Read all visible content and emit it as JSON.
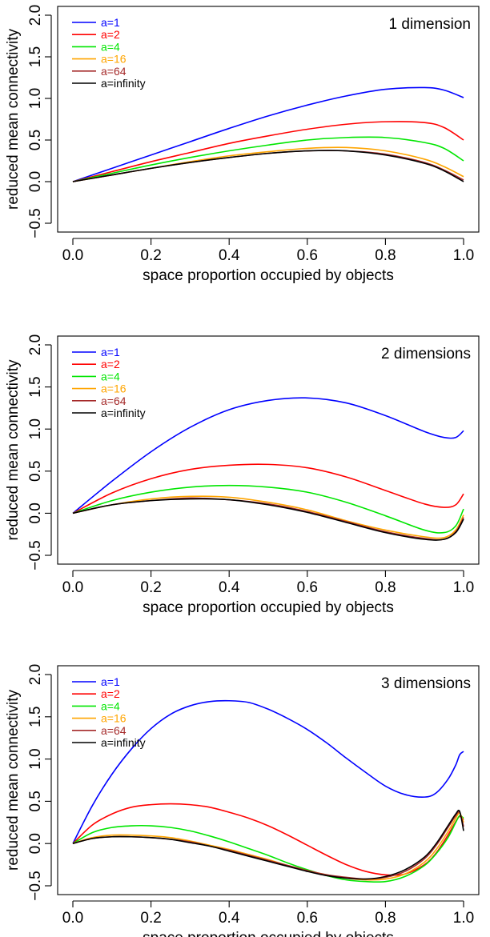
{
  "chart_data": [
    {
      "type": "line",
      "title": "1 dimension",
      "xlabel": "space proportion occupied by objects",
      "ylabel": "reduced mean connectivity",
      "xlim": [
        0,
        1
      ],
      "ylim": [
        -0.5,
        2.0
      ],
      "xticks": [
        "0.0",
        "0.2",
        "0.4",
        "0.6",
        "0.8",
        "1.0"
      ],
      "yticks": [
        "-0.5",
        "0.0",
        "0.5",
        "1.0",
        "1.5",
        "2.0"
      ],
      "legend_position": "top-left",
      "x": [
        0,
        0.1,
        0.2,
        0.3,
        0.4,
        0.5,
        0.6,
        0.7,
        0.8,
        0.9,
        0.95,
        1.0
      ],
      "series": [
        {
          "name": "a=1",
          "color": "#0000ff",
          "values": [
            0,
            0.16,
            0.32,
            0.48,
            0.64,
            0.79,
            0.92,
            1.03,
            1.11,
            1.13,
            1.1,
            1.01
          ]
        },
        {
          "name": "a=2",
          "color": "#ff0000",
          "values": [
            0,
            0.12,
            0.24,
            0.35,
            0.46,
            0.55,
            0.63,
            0.69,
            0.72,
            0.71,
            0.65,
            0.5
          ]
        },
        {
          "name": "a=4",
          "color": "#00e600",
          "values": [
            0,
            0.1,
            0.2,
            0.29,
            0.37,
            0.44,
            0.5,
            0.53,
            0.53,
            0.47,
            0.4,
            0.25
          ]
        },
        {
          "name": "a=16",
          "color": "#ffa500",
          "values": [
            0,
            0.08,
            0.16,
            0.24,
            0.31,
            0.36,
            0.4,
            0.41,
            0.37,
            0.27,
            0.18,
            0.06
          ]
        },
        {
          "name": "a=64",
          "color": "#a52a2a",
          "values": [
            0,
            0.08,
            0.16,
            0.23,
            0.29,
            0.34,
            0.37,
            0.37,
            0.33,
            0.23,
            0.14,
            0.02
          ]
        },
        {
          "name": "a=infinity",
          "color": "#000000",
          "values": [
            0,
            0.08,
            0.16,
            0.23,
            0.29,
            0.34,
            0.37,
            0.37,
            0.32,
            0.22,
            0.13,
            0.0
          ]
        }
      ]
    },
    {
      "type": "line",
      "title": "2 dimensions",
      "xlabel": "space proportion occupied by objects",
      "ylabel": "reduced mean connectivity",
      "xlim": [
        0,
        1
      ],
      "ylim": [
        -0.5,
        2.0
      ],
      "xticks": [
        "0.0",
        "0.2",
        "0.4",
        "0.6",
        "0.8",
        "1.0"
      ],
      "yticks": [
        "-0.5",
        "0.0",
        "0.5",
        "1.0",
        "1.5",
        "2.0"
      ],
      "legend_position": "top-left",
      "x": [
        0,
        0.1,
        0.2,
        0.3,
        0.4,
        0.5,
        0.6,
        0.7,
        0.8,
        0.9,
        0.95,
        0.98,
        1.0
      ],
      "series": [
        {
          "name": "a=1",
          "color": "#0000ff",
          "values": [
            0,
            0.38,
            0.73,
            1.02,
            1.23,
            1.34,
            1.37,
            1.31,
            1.16,
            0.97,
            0.9,
            0.9,
            0.98
          ]
        },
        {
          "name": "a=2",
          "color": "#ff0000",
          "values": [
            0,
            0.24,
            0.41,
            0.52,
            0.57,
            0.58,
            0.54,
            0.43,
            0.27,
            0.11,
            0.07,
            0.1,
            0.23
          ]
        },
        {
          "name": "a=4",
          "color": "#00e600",
          "values": [
            0,
            0.15,
            0.25,
            0.31,
            0.33,
            0.31,
            0.25,
            0.13,
            -0.03,
            -0.2,
            -0.23,
            -0.15,
            0.05
          ]
        },
        {
          "name": "a=16",
          "color": "#ffa500",
          "values": [
            0,
            0.1,
            0.17,
            0.2,
            0.19,
            0.13,
            0.04,
            -0.09,
            -0.2,
            -0.28,
            -0.29,
            -0.2,
            -0.02
          ]
        },
        {
          "name": "a=64",
          "color": "#a52a2a",
          "values": [
            0,
            0.1,
            0.15,
            0.18,
            0.16,
            0.11,
            0.02,
            -0.1,
            -0.22,
            -0.3,
            -0.31,
            -0.22,
            -0.05
          ]
        },
        {
          "name": "a=infinity",
          "color": "#000000",
          "values": [
            0,
            0.1,
            0.15,
            0.17,
            0.16,
            0.1,
            0.01,
            -0.11,
            -0.23,
            -0.31,
            -0.31,
            -0.23,
            -0.07
          ]
        }
      ]
    },
    {
      "type": "line",
      "title": "3 dimensions",
      "xlabel": "space proportion occupied by objects",
      "ylabel": "reduced mean connectivity",
      "xlim": [
        0,
        1
      ],
      "ylim": [
        -0.5,
        2.0
      ],
      "xticks": [
        "0.0",
        "0.2",
        "0.4",
        "0.6",
        "0.8",
        "1.0"
      ],
      "yticks": [
        "-0.5",
        "0.0",
        "0.5",
        "1.0",
        "1.5",
        "2.0"
      ],
      "legend_position": "top-left",
      "x": [
        0,
        0.05,
        0.1,
        0.15,
        0.2,
        0.25,
        0.3,
        0.35,
        0.4,
        0.45,
        0.5,
        0.55,
        0.6,
        0.65,
        0.7,
        0.75,
        0.8,
        0.85,
        0.9,
        0.93,
        0.96,
        0.98,
        0.99,
        1.0
      ],
      "series": [
        {
          "name": "a=1",
          "color": "#0000ff",
          "values": [
            0,
            0.45,
            0.82,
            1.12,
            1.36,
            1.53,
            1.63,
            1.68,
            1.69,
            1.67,
            1.59,
            1.48,
            1.35,
            1.19,
            1.01,
            0.84,
            0.68,
            0.58,
            0.55,
            0.6,
            0.76,
            0.93,
            1.05,
            1.09
          ]
        },
        {
          "name": "a=2",
          "color": "#ff0000",
          "values": [
            0,
            0.22,
            0.35,
            0.43,
            0.46,
            0.47,
            0.46,
            0.43,
            0.37,
            0.3,
            0.21,
            0.1,
            -0.02,
            -0.14,
            -0.25,
            -0.33,
            -0.37,
            -0.36,
            -0.25,
            -0.11,
            0.1,
            0.26,
            0.32,
            0.28
          ]
        },
        {
          "name": "a=4",
          "color": "#00e600",
          "values": [
            0,
            0.13,
            0.19,
            0.21,
            0.21,
            0.19,
            0.15,
            0.09,
            0.02,
            -0.06,
            -0.14,
            -0.23,
            -0.31,
            -0.38,
            -0.43,
            -0.45,
            -0.45,
            -0.39,
            -0.26,
            -0.12,
            0.07,
            0.25,
            0.33,
            0.3
          ]
        },
        {
          "name": "a=16",
          "color": "#ffa500",
          "values": [
            0,
            0.07,
            0.1,
            0.1,
            0.09,
            0.07,
            0.03,
            -0.02,
            -0.07,
            -0.13,
            -0.19,
            -0.26,
            -0.32,
            -0.37,
            -0.41,
            -0.43,
            -0.42,
            -0.36,
            -0.22,
            -0.07,
            0.14,
            0.3,
            0.36,
            0.25
          ]
        },
        {
          "name": "a=64",
          "color": "#a52a2a",
          "values": [
            0,
            0.06,
            0.08,
            0.08,
            0.07,
            0.05,
            0.02,
            -0.03,
            -0.08,
            -0.14,
            -0.2,
            -0.26,
            -0.32,
            -0.37,
            -0.4,
            -0.42,
            -0.4,
            -0.33,
            -0.18,
            -0.02,
            0.19,
            0.33,
            0.37,
            0.2
          ]
        },
        {
          "name": "a=infinity",
          "color": "#000000",
          "values": [
            0,
            0.06,
            0.08,
            0.08,
            0.07,
            0.05,
            0.01,
            -0.03,
            -0.09,
            -0.15,
            -0.21,
            -0.27,
            -0.33,
            -0.38,
            -0.41,
            -0.42,
            -0.39,
            -0.31,
            -0.16,
            0.0,
            0.21,
            0.35,
            0.38,
            0.15
          ]
        }
      ]
    }
  ]
}
